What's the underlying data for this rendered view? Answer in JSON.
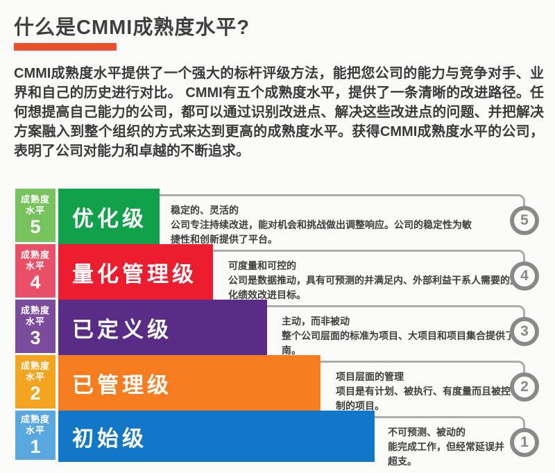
{
  "page": {
    "title": "什么是CMMI成熟度水平?",
    "intro": "CMMI成熟度水平提供了一个强大的标杆评级方法，能把您公司的能力与竞争对手、业界和自己的历史进行对比。 CMMI有五个成熟度水平，提供了一条清晰的改进路径。任何想提高自己能力的公司，都可以通过识别改进点、解决这些改进点的问题、并把解决方案融入到整个组织的方式来达到更高的成熟度水平。获得CMMI成熟度水平的公司，表明了公司对能力和卓越的不断追求。"
  },
  "levels": [
    {
      "label_line1": "成熟度",
      "label_line2": "水平",
      "number": "5",
      "title": "优化级",
      "summary": "稳定的、灵活的",
      "detail": "公司专注持续改进，能对机会和挑战做出调整响应。公司的稳定性为敏捷性和创新提供了平台。",
      "badge": "5",
      "label_color": "#76C25C",
      "bar_color": "#12A14B"
    },
    {
      "label_line1": "成熟度",
      "label_line2": "水平",
      "number": "4",
      "title": "量化管理级",
      "summary": "可度量和可控的",
      "detail": "公司是数据推动，具有可预测的并满足内、外部利益干系人需要的量化绩效改进目标。",
      "badge": "4",
      "label_color": "#E94F66",
      "bar_color": "#EC1D2F"
    },
    {
      "label_line1": "成熟度",
      "label_line2": "水平",
      "number": "3",
      "title": "已定义级",
      "summary": "主动，而非被动",
      "detail": "整个公司层面的标准为项目、大项目和项目集合提供了指南。",
      "badge": "3",
      "label_color": "#7B4B9C",
      "bar_color": "#592C85"
    },
    {
      "label_line1": "成熟度",
      "label_line2": "水平",
      "number": "2",
      "title": "已管理级",
      "summary": "项目层面的管理",
      "detail": "项目是有计划、被执行、有度量而且被控制的项目。",
      "badge": "2",
      "label_color": "#F3A51F",
      "bar_color": "#F57D1F"
    },
    {
      "label_line1": "成熟度",
      "label_line2": "水平",
      "number": "1",
      "title": "初始级",
      "summary": "不可预测、被动的",
      "detail": "能完成工作，但经常延误并超支。",
      "badge": "1",
      "label_color": "#58A8DF",
      "bar_color": "#1377C8"
    }
  ],
  "colors": {
    "accent_underline": "#E8512C",
    "connector_gray": "#ACACAC",
    "badge_gray": "#898989",
    "title_text": "#3F3F3F",
    "body_text": "#3A3A3A",
    "background": "#FAFAF8"
  }
}
